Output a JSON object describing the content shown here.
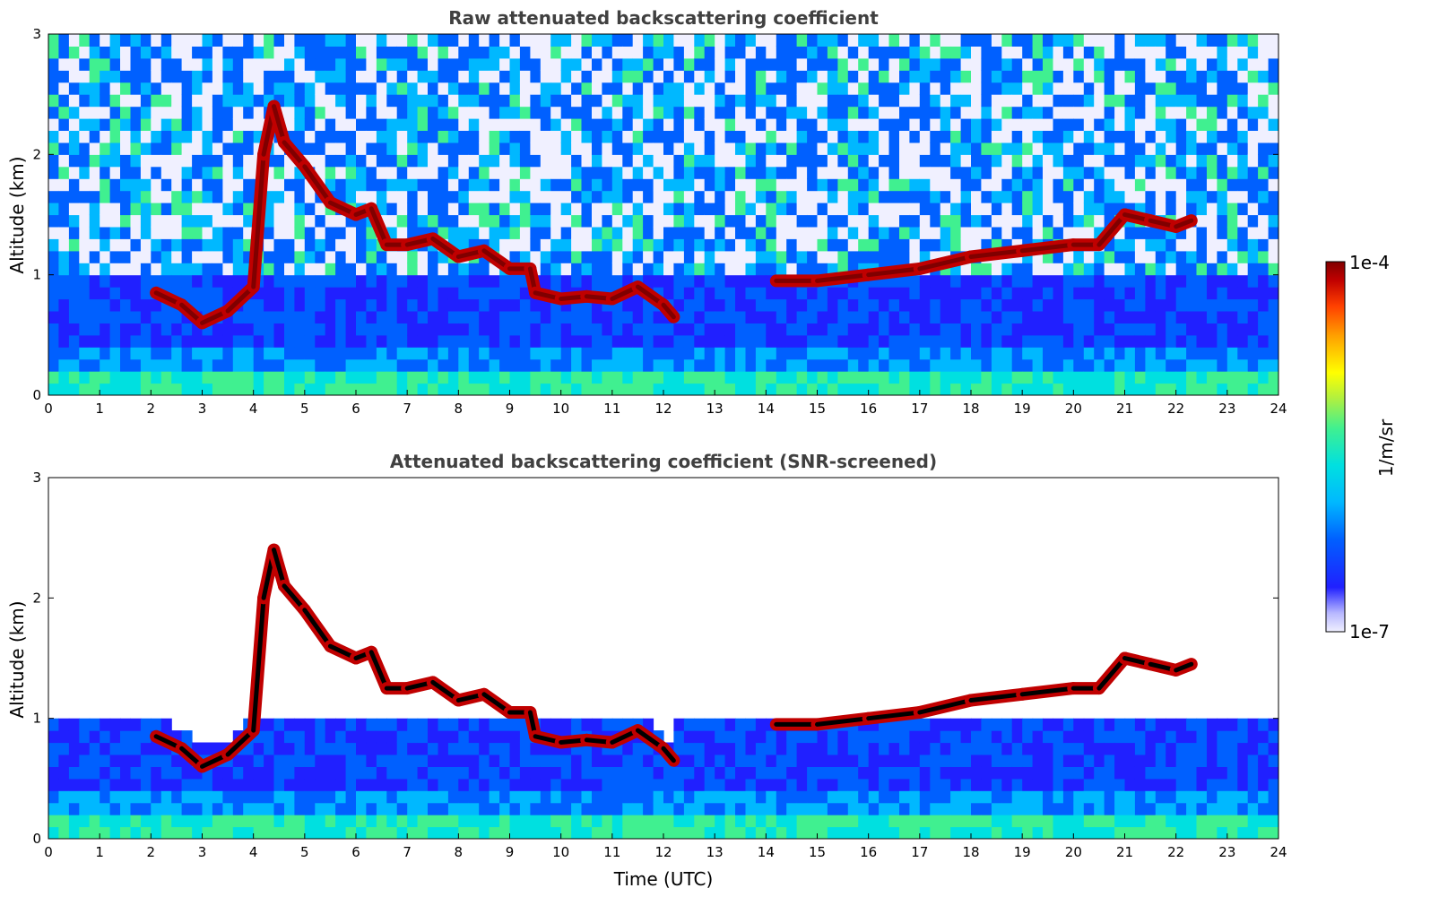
{
  "chart_data": [
    {
      "type": "heatmap",
      "panel": "top",
      "title": "Raw attenuated backscattering coefficient",
      "xlabel": "",
      "ylabel": "Altitude (km)",
      "xlim": [
        0,
        24
      ],
      "ylim": [
        0,
        3
      ],
      "xticks": [
        "0",
        "1",
        "2",
        "3",
        "4",
        "5",
        "6",
        "7",
        "8",
        "9",
        "10",
        "11",
        "12",
        "13",
        "14",
        "15",
        "16",
        "17",
        "18",
        "19",
        "20",
        "21",
        "22",
        "23",
        "24"
      ],
      "yticks": [
        "0",
        "1",
        "2",
        "3"
      ],
      "screened": false,
      "cloud_base_track_km": [
        {
          "t": 2.1,
          "z": 0.85
        },
        {
          "t": 2.6,
          "z": 0.75
        },
        {
          "t": 3.0,
          "z": 0.6
        },
        {
          "t": 3.5,
          "z": 0.7
        },
        {
          "t": 4.0,
          "z": 0.9
        },
        {
          "t": 4.2,
          "z": 2.0
        },
        {
          "t": 4.4,
          "z": 2.4
        },
        {
          "t": 4.6,
          "z": 2.1
        },
        {
          "t": 5.0,
          "z": 1.9
        },
        {
          "t": 5.5,
          "z": 1.6
        },
        {
          "t": 6.0,
          "z": 1.5
        },
        {
          "t": 6.3,
          "z": 1.55
        },
        {
          "t": 6.6,
          "z": 1.25
        },
        {
          "t": 7.0,
          "z": 1.25
        },
        {
          "t": 7.5,
          "z": 1.3
        },
        {
          "t": 8.0,
          "z": 1.15
        },
        {
          "t": 8.5,
          "z": 1.2
        },
        {
          "t": 9.0,
          "z": 1.05
        },
        {
          "t": 9.4,
          "z": 1.05
        },
        {
          "t": 9.5,
          "z": 0.85
        },
        {
          "t": 10.0,
          "z": 0.8
        },
        {
          "t": 10.5,
          "z": 0.82
        },
        {
          "t": 11.0,
          "z": 0.8
        },
        {
          "t": 11.5,
          "z": 0.9
        },
        {
          "t": 12.0,
          "z": 0.75
        },
        {
          "t": 12.2,
          "z": 0.65
        },
        {
          "t": 14.2,
          "z": 0.95
        },
        {
          "t": 15.0,
          "z": 0.95
        },
        {
          "t": 16.0,
          "z": 1.0
        },
        {
          "t": 17.0,
          "z": 1.05
        },
        {
          "t": 18.0,
          "z": 1.15
        },
        {
          "t": 19.0,
          "z": 1.2
        },
        {
          "t": 20.0,
          "z": 1.25
        },
        {
          "t": 20.5,
          "z": 1.25
        },
        {
          "t": 21.0,
          "z": 1.5
        },
        {
          "t": 21.5,
          "z": 1.45
        },
        {
          "t": 22.0,
          "z": 1.4
        },
        {
          "t": 22.3,
          "z": 1.45
        }
      ]
    },
    {
      "type": "heatmap",
      "panel": "bottom",
      "title": "Attenuated backscattering coefficient (SNR-screened)",
      "xlabel": "Time (UTC)",
      "ylabel": "Altitude (km)",
      "xlim": [
        0,
        24
      ],
      "ylim": [
        0,
        3
      ],
      "xticks": [
        "0",
        "1",
        "2",
        "3",
        "4",
        "5",
        "6",
        "7",
        "8",
        "9",
        "10",
        "11",
        "12",
        "13",
        "14",
        "15",
        "16",
        "17",
        "18",
        "19",
        "20",
        "21",
        "22",
        "23",
        "24"
      ],
      "yticks": [
        "0",
        "1",
        "2",
        "3"
      ],
      "screened": true
    }
  ],
  "colorbar": {
    "label": "1/m/sr",
    "max_label": "1e-4",
    "min_label": "1e-7",
    "scale": "log",
    "range": [
      1e-07,
      0.0001
    ]
  },
  "colormap": [
    "#f0f0ff",
    "#b8b8ff",
    "#2020ff",
    "#0060ff",
    "#00b8ff",
    "#00e0e0",
    "#40f090",
    "#b0f040",
    "#ffff00",
    "#ffa000",
    "#ff4000",
    "#c00000",
    "#800000"
  ]
}
